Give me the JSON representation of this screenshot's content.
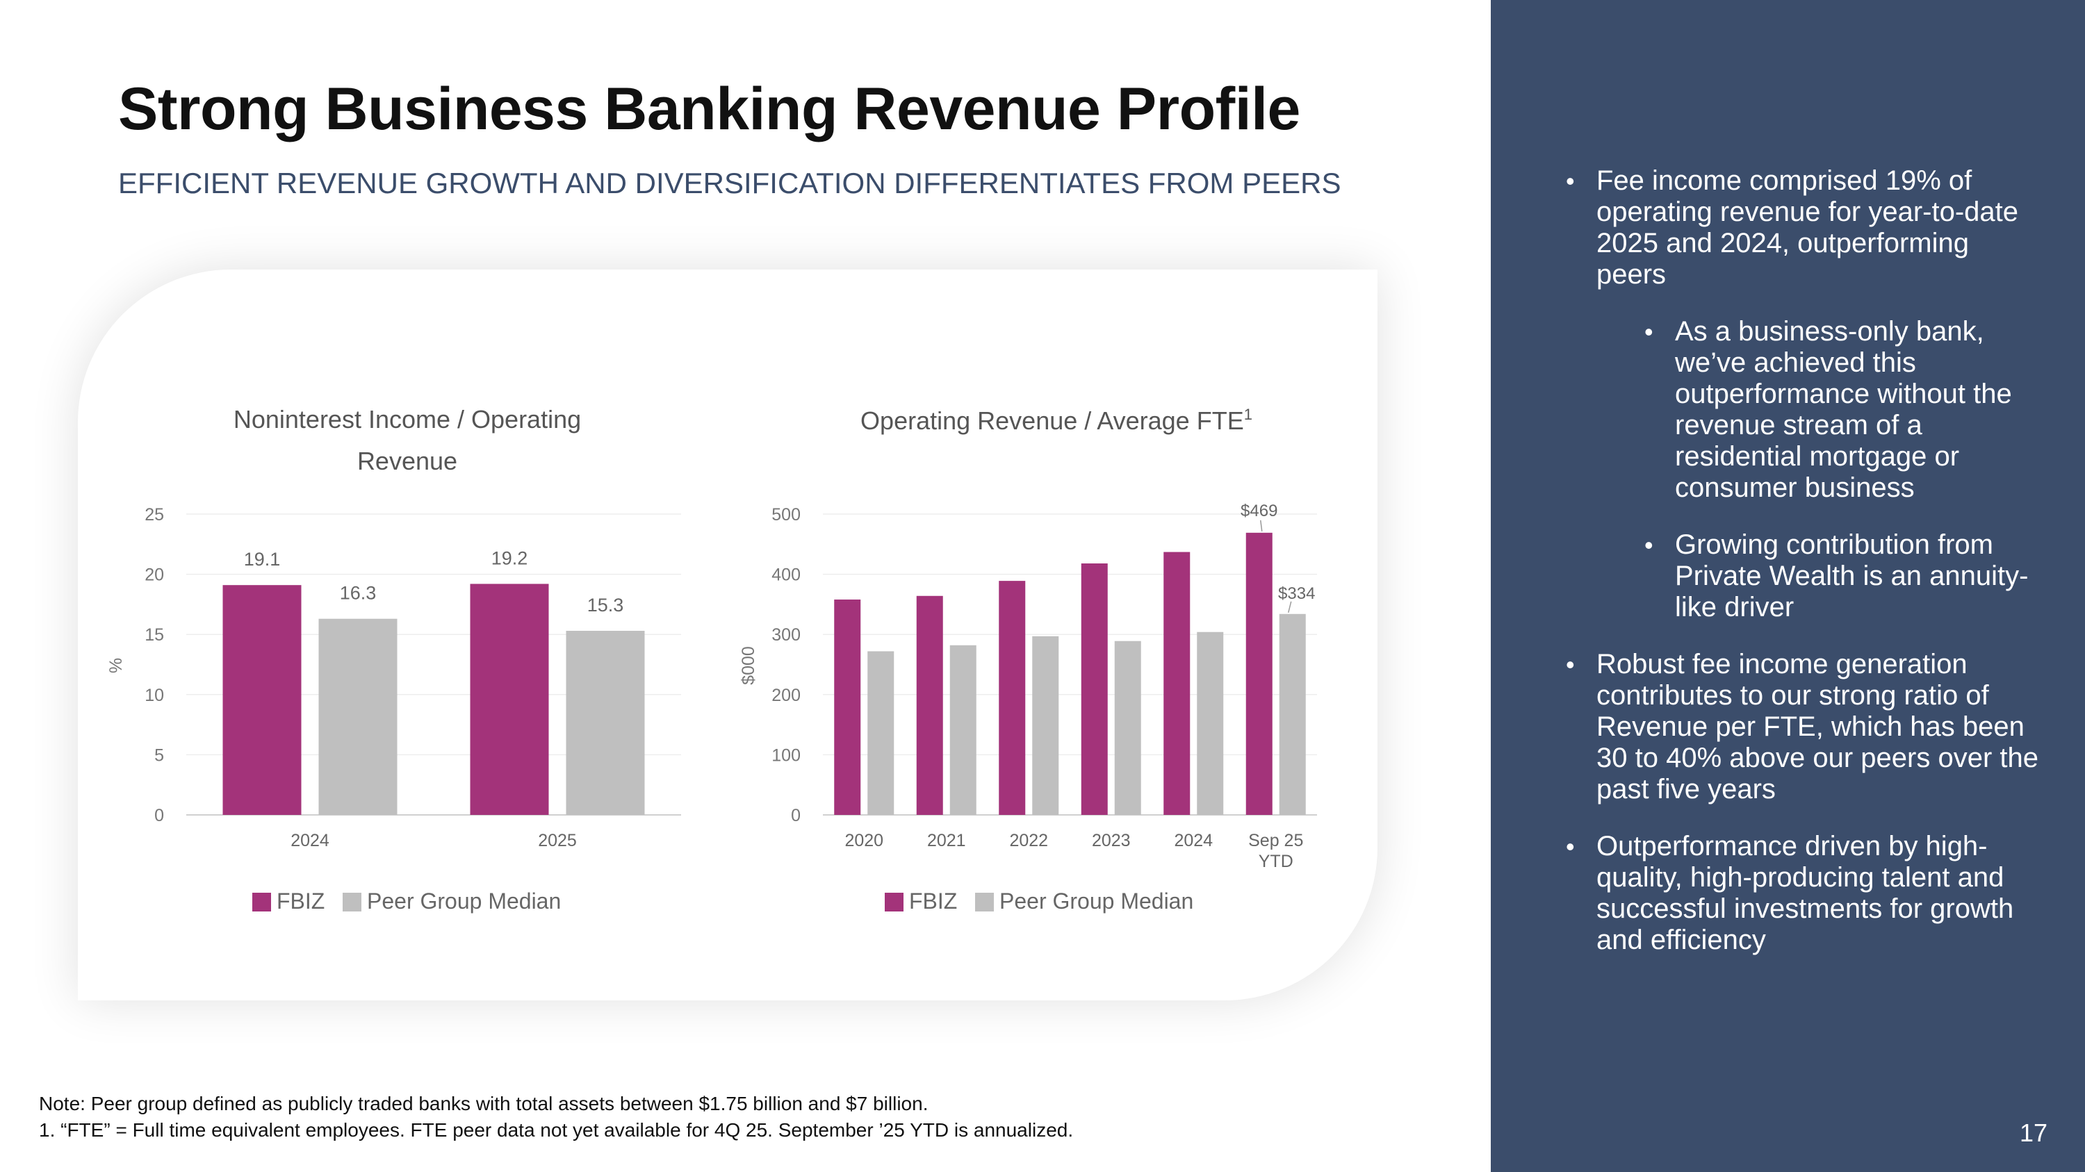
{
  "header": {
    "title": "Strong Business Banking Revenue Profile",
    "subtitle": "EFFICIENT REVENUE GROWTH AND DIVERSIFICATION DIFFERENTIATES FROM PEERS"
  },
  "colors": {
    "fbiz": "#a3337a",
    "peer": "#bfbfbf",
    "sidebar": "#3b4d6b"
  },
  "chart_data": [
    {
      "type": "bar",
      "title_lines": [
        "Noninterest Income / Operating",
        "Revenue"
      ],
      "ylabel": "%",
      "ylim": [
        0,
        25
      ],
      "yticks": [
        0,
        5,
        10,
        15,
        20,
        25
      ],
      "categories": [
        "2024",
        "2025"
      ],
      "series": [
        {
          "name": "FBIZ",
          "values": [
            19.1,
            19.2
          ],
          "labels": [
            "19.1",
            "19.2"
          ]
        },
        {
          "name": "Peer Group Median",
          "values": [
            16.3,
            15.3
          ],
          "labels": [
            "16.3",
            "15.3"
          ]
        }
      ],
      "legend": [
        "FBIZ",
        "Peer Group Median"
      ]
    },
    {
      "type": "bar",
      "title": "Operating Revenue / Average FTE",
      "title_sup": "1",
      "ylabel": "$000",
      "ylim": [
        0,
        500
      ],
      "yticks": [
        0,
        100,
        200,
        300,
        400,
        500
      ],
      "categories": [
        [
          "2020"
        ],
        [
          "2021"
        ],
        [
          "2022"
        ],
        [
          "2023"
        ],
        [
          "2024"
        ],
        [
          "Sep 25",
          "YTD"
        ]
      ],
      "series": [
        {
          "name": "FBIZ",
          "values": [
            358,
            364,
            389,
            418,
            437,
            469
          ],
          "labels": [
            "",
            "",
            "",
            "",
            "",
            "$469"
          ]
        },
        {
          "name": "Peer Group Median",
          "values": [
            272,
            282,
            297,
            289,
            304,
            334
          ],
          "labels": [
            "",
            "",
            "",
            "",
            "",
            "$334"
          ]
        }
      ],
      "legend": [
        "FBIZ",
        "Peer Group Median"
      ]
    }
  ],
  "sidebar": {
    "bullets": [
      {
        "text": "Fee income comprised 19% of operating revenue for year-to-date 2025 and 2024, outperforming peers",
        "level": 1
      },
      {
        "text": "As a business-only bank, we’ve achieved this outperformance without the revenue stream of a residential mortgage or consumer business",
        "level": 2
      },
      {
        "text": "Growing contribution from Private Wealth is an annuity-like driver",
        "level": 2
      },
      {
        "text": "Robust fee income generation contributes to our strong ratio of Revenue per FTE, which has been 30 to 40% above our peers over the past five years",
        "level": 1
      },
      {
        "text": "Outperformance driven by high-quality, high-producing talent and successful investments for growth and efficiency",
        "level": 1
      }
    ],
    "page_number": "17"
  },
  "footer": {
    "note": "Note: Peer group defined as publicly traded banks with total assets between $1.75 billion and $7 billion.",
    "footnote": "1. “FTE” = Full time equivalent employees. FTE peer data not yet available for 4Q 25. September ’25 YTD is annualized."
  }
}
